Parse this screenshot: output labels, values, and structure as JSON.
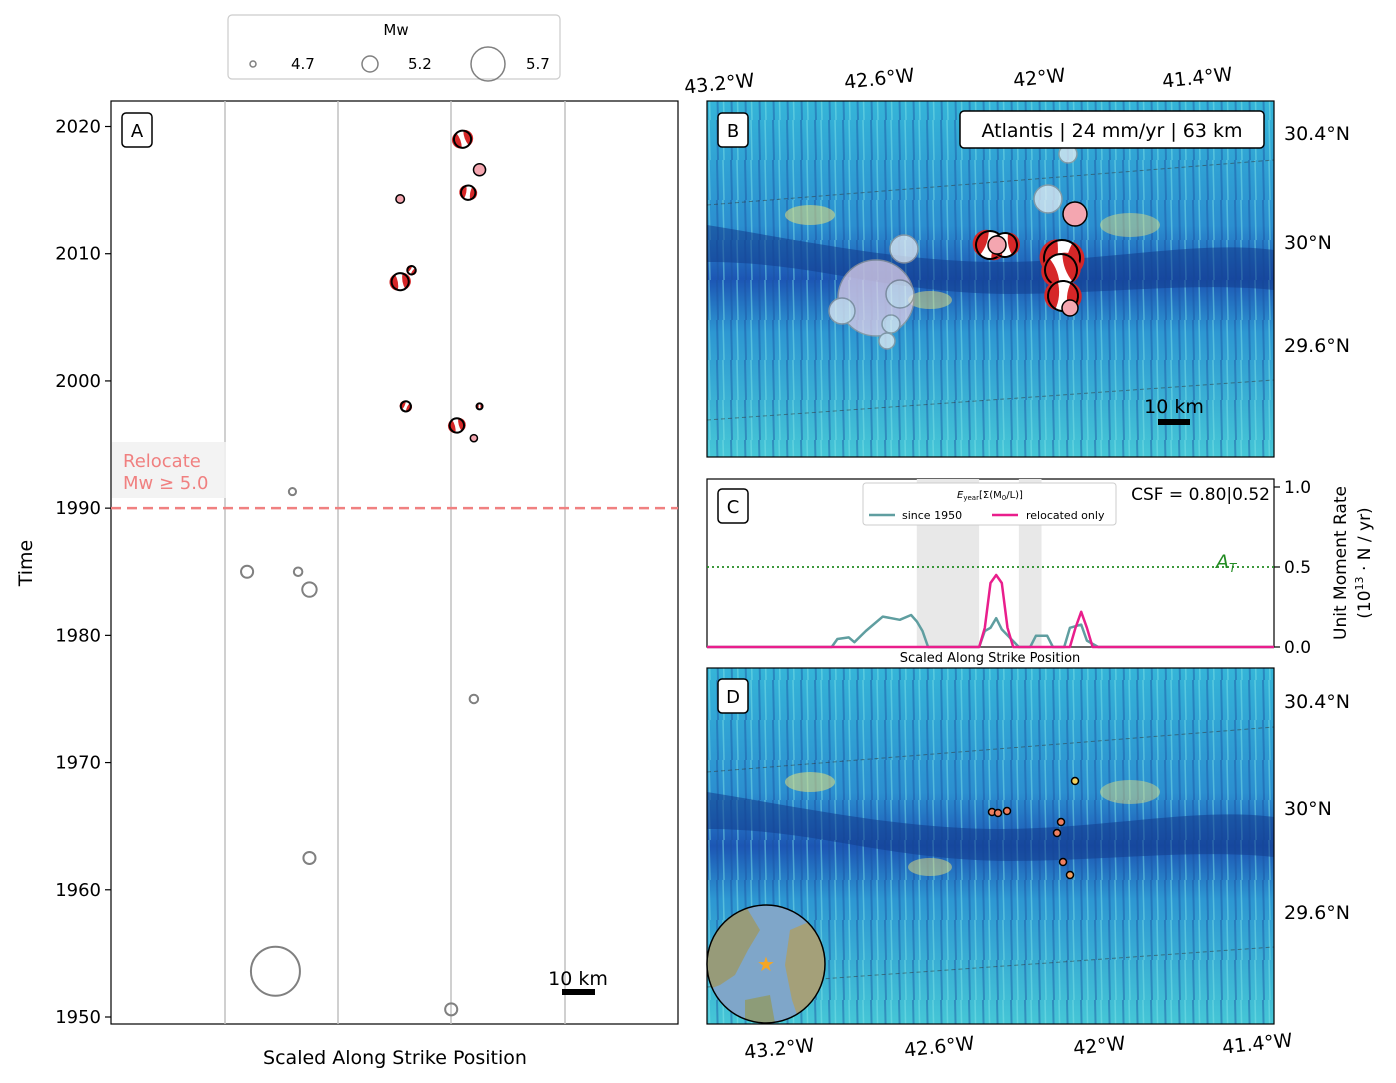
{
  "legend": {
    "title": "Mw",
    "entries": [
      {
        "mw": 4.7,
        "label": "4.7"
      },
      {
        "mw": 5.2,
        "label": "5.2"
      },
      {
        "mw": 5.7,
        "label": "5.7"
      }
    ]
  },
  "panels": {
    "a": {
      "label": "A",
      "xlabel": "Scaled Along Strike Position",
      "ylabel": "Time",
      "scalebar": "10 km",
      "relocate_label_1": "Relocate",
      "relocate_label_2": "Mw ≥ 5.0"
    },
    "b": {
      "label": "B",
      "infobox": "Atlantis | 24 mm/yr | 63 km",
      "scalebar": "10 km",
      "lon_ticks": [
        "43.2°W",
        "42.6°W",
        "42°W",
        "41.4°W"
      ],
      "lat_ticks": [
        "30.4°N",
        "30°N",
        "29.6°N"
      ]
    },
    "c": {
      "label": "C",
      "xlabel": "Scaled Along Strike Position",
      "ylabel_1": "Unit Moment Rate",
      "ylabel_2": "(10",
      "ylabel_exp": "13",
      "ylabel_3": " · N / yr)",
      "csf": "CSF = 0.80|0.52",
      "legend_title": "E",
      "legend_title_sub": "year",
      "legend_title_rest": "[Σ(M",
      "legend_title_sub2": "0",
      "legend_title_end": "/L)]",
      "threshold_label": "A",
      "threshold_sub": "T",
      "yticks": [
        "0.0",
        "0.5",
        "1.0"
      ]
    },
    "d": {
      "label": "D",
      "lon_ticks": [
        "43.2°W",
        "42.6°W",
        "42°W",
        "41.4°W"
      ],
      "lat_ticks": [
        "30.4°N",
        "30°N",
        "29.6°N"
      ]
    }
  },
  "colors": {
    "relocated_fill": "#f4a6b0",
    "beachball_red": "#d62728",
    "historic_edge": "#808080",
    "relocate_line": "#f08080",
    "since1950": "#5f9ea0",
    "relocated_only": "#e91e8c",
    "threshold": "#228b22"
  },
  "chart_data": {
    "type": "scatter",
    "title": "",
    "xlabel": "Scaled Along Strike Position",
    "ylabel": "Time",
    "ylim": [
      1949,
      2022
    ],
    "yticks": [
      1950,
      1960,
      1970,
      1980,
      1990,
      2000,
      2010,
      2020
    ],
    "relocate_threshold_year": 1990,
    "relocate_threshold_label": "Relocate Mw ≥ 5.0",
    "series": [
      {
        "name": "historic (grey circles)",
        "points": [
          {
            "x": 0.32,
            "year": 1991.3,
            "mw": 4.8
          },
          {
            "x": 0.24,
            "year": 1985.0,
            "mw": 5.1
          },
          {
            "x": 0.33,
            "year": 1985.0,
            "mw": 4.9
          },
          {
            "x": 0.35,
            "year": 1983.6,
            "mw": 5.2
          },
          {
            "x": 0.64,
            "year": 1975.0,
            "mw": 4.9
          },
          {
            "x": 0.35,
            "year": 1962.5,
            "mw": 5.1
          },
          {
            "x": 0.29,
            "year": 1953.6,
            "mw": 5.9
          },
          {
            "x": 0.6,
            "year": 1950.6,
            "mw": 5.1
          }
        ]
      },
      {
        "name": "relocated (pink circles)",
        "points": [
          {
            "x": 0.51,
            "year": 2014.3,
            "mw": 4.9
          },
          {
            "x": 0.65,
            "year": 2016.6,
            "mw": 5.1
          },
          {
            "x": 0.64,
            "year": 1995.5,
            "mw": 4.8
          }
        ]
      },
      {
        "name": "relocated with focal mechanism (beachballs)",
        "points": [
          {
            "x": 0.62,
            "year": 2019.0,
            "mw": 5.3
          },
          {
            "x": 0.63,
            "year": 2014.8,
            "mw": 5.2
          },
          {
            "x": 0.53,
            "year": 2008.7,
            "mw": 4.9
          },
          {
            "x": 0.51,
            "year": 2007.8,
            "mw": 5.3
          },
          {
            "x": 0.52,
            "year": 1998.0,
            "mw": 5.0
          },
          {
            "x": 0.65,
            "year": 1998.0,
            "mw": 4.7
          },
          {
            "x": 0.61,
            "year": 1996.5,
            "mw": 5.2
          }
        ]
      }
    ],
    "panel_c": {
      "type": "line",
      "xlabel": "Scaled Along Strike Position",
      "ylim": [
        0,
        1.0
      ],
      "threshold": 0.5,
      "legend": [
        "since 1950",
        "relocated only"
      ],
      "csf": "CSF = 0.80|0.52",
      "series": [
        {
          "name": "since 1950",
          "x": [
            0.0,
            0.22,
            0.23,
            0.25,
            0.26,
            0.28,
            0.31,
            0.34,
            0.36,
            0.37,
            0.38,
            0.39,
            0.42,
            0.45,
            0.48,
            0.49,
            0.5,
            0.51,
            0.52,
            0.55,
            0.57,
            0.58,
            0.6,
            0.61,
            0.63,
            0.64,
            0.66,
            0.67,
            0.69,
            1.0
          ],
          "y": [
            0.0,
            0.0,
            0.05,
            0.06,
            0.03,
            0.1,
            0.19,
            0.17,
            0.2,
            0.16,
            0.1,
            0.0,
            0.0,
            0.0,
            0.0,
            0.1,
            0.12,
            0.18,
            0.11,
            0.0,
            0.0,
            0.07,
            0.07,
            0.0,
            0.0,
            0.12,
            0.14,
            0.04,
            0.0,
            0.0
          ]
        },
        {
          "name": "relocated only",
          "x": [
            0.0,
            0.48,
            0.49,
            0.5,
            0.51,
            0.52,
            0.53,
            0.54,
            0.55,
            0.64,
            0.65,
            0.66,
            0.67,
            0.68,
            1.0
          ],
          "y": [
            0.0,
            0.0,
            0.12,
            0.4,
            0.45,
            0.4,
            0.12,
            0.0,
            0.0,
            0.0,
            0.12,
            0.22,
            0.12,
            0.0,
            0.0
          ]
        }
      ],
      "shaded_intervals": [
        [
          0.37,
          0.48
        ],
        [
          0.55,
          0.59
        ]
      ]
    },
    "panel_b_overlay": {
      "infobox": "Atlantis | 24 mm/yr | 63 km"
    }
  }
}
